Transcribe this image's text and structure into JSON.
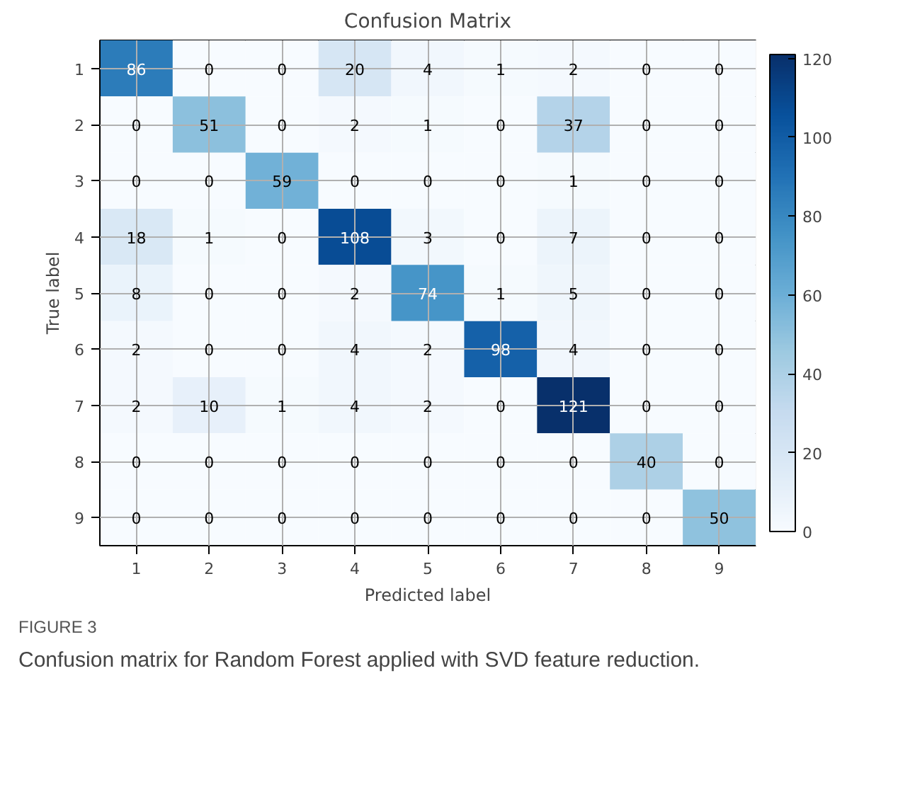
{
  "chart_data": {
    "type": "heatmap",
    "title": "Confusion Matrix",
    "xlabel": "Predicted label",
    "ylabel": "True label",
    "categories": [
      "1",
      "2",
      "3",
      "4",
      "5",
      "6",
      "7",
      "8",
      "9"
    ],
    "y_categories": [
      "1",
      "2",
      "3",
      "4",
      "5",
      "6",
      "7",
      "8",
      "9"
    ],
    "cells": [
      [
        86,
        0,
        0,
        20,
        4,
        1,
        2,
        0,
        0
      ],
      [
        0,
        51,
        0,
        2,
        1,
        0,
        37,
        0,
        0
      ],
      [
        0,
        0,
        59,
        0,
        0,
        0,
        1,
        0,
        0
      ],
      [
        18,
        1,
        0,
        108,
        3,
        0,
        7,
        0,
        0
      ],
      [
        8,
        0,
        0,
        2,
        74,
        1,
        5,
        0,
        0
      ],
      [
        2,
        0,
        0,
        4,
        2,
        98,
        4,
        0,
        0
      ],
      [
        2,
        10,
        1,
        4,
        2,
        0,
        121,
        0,
        0
      ],
      [
        0,
        0,
        0,
        0,
        0,
        0,
        0,
        40,
        0
      ],
      [
        0,
        0,
        0,
        0,
        0,
        0,
        0,
        0,
        50
      ]
    ],
    "clim": [
      0,
      121
    ],
    "cticks": [
      0,
      20,
      40,
      60,
      80,
      100,
      120
    ],
    "data_labels": true,
    "grid": true,
    "annotations": [
      "FIGURE 3",
      "Confusion matrix for Random Forest applied with SVD feature reduction."
    ]
  }
}
